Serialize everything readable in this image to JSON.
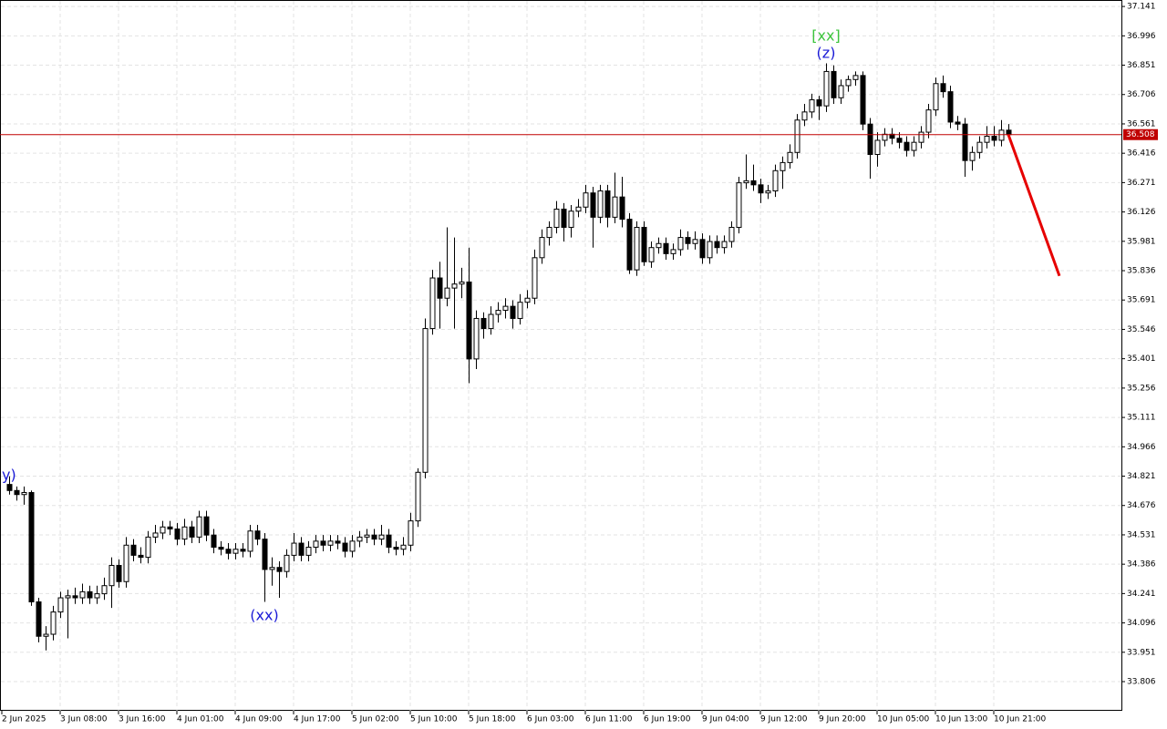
{
  "chart_data": {
    "type": "candlestick",
    "ohlc": [
      [
        34.78,
        34.82,
        34.73,
        34.75
      ],
      [
        34.75,
        34.77,
        34.7,
        34.73
      ],
      [
        34.73,
        34.77,
        34.68,
        34.74
      ],
      [
        34.74,
        34.75,
        34.18,
        34.2
      ],
      [
        34.2,
        34.22,
        34.0,
        34.03
      ],
      [
        34.03,
        34.08,
        33.96,
        34.04
      ],
      [
        34.04,
        34.18,
        34.01,
        34.15
      ],
      [
        34.15,
        34.25,
        34.12,
        34.22
      ],
      [
        34.22,
        34.26,
        34.02,
        34.23
      ],
      [
        34.23,
        34.27,
        34.19,
        34.22
      ],
      [
        34.22,
        34.29,
        34.19,
        34.25
      ],
      [
        34.25,
        34.28,
        34.19,
        34.22
      ],
      [
        34.22,
        34.28,
        34.19,
        34.24
      ],
      [
        34.24,
        34.32,
        34.21,
        34.28
      ],
      [
        34.28,
        34.42,
        34.17,
        34.38
      ],
      [
        34.38,
        34.41,
        34.27,
        34.3
      ],
      [
        34.3,
        34.52,
        34.27,
        34.48
      ],
      [
        34.48,
        34.51,
        34.4,
        34.43
      ],
      [
        34.43,
        34.47,
        34.39,
        34.42
      ],
      [
        34.42,
        34.55,
        34.39,
        34.52
      ],
      [
        34.52,
        34.58,
        34.49,
        34.54
      ],
      [
        34.54,
        34.6,
        34.51,
        34.57
      ],
      [
        34.57,
        34.6,
        34.53,
        34.56
      ],
      [
        34.56,
        34.59,
        34.48,
        34.51
      ],
      [
        34.51,
        34.61,
        34.48,
        34.57
      ],
      [
        34.57,
        34.6,
        34.49,
        34.52
      ],
      [
        34.52,
        34.65,
        34.49,
        34.62
      ],
      [
        34.62,
        34.65,
        34.5,
        34.53
      ],
      [
        34.53,
        34.56,
        34.44,
        34.47
      ],
      [
        34.47,
        34.5,
        34.43,
        34.46
      ],
      [
        34.46,
        34.49,
        34.41,
        34.44
      ],
      [
        34.44,
        34.49,
        34.41,
        34.46
      ],
      [
        34.46,
        34.49,
        34.42,
        34.45
      ],
      [
        34.45,
        34.58,
        34.42,
        34.55
      ],
      [
        34.55,
        34.58,
        34.48,
        34.51
      ],
      [
        34.51,
        34.54,
        34.2,
        34.36
      ],
      [
        34.36,
        34.42,
        34.28,
        34.37
      ],
      [
        34.37,
        34.4,
        34.22,
        34.35
      ],
      [
        34.35,
        34.46,
        34.32,
        34.43
      ],
      [
        34.43,
        34.54,
        34.4,
        34.49
      ],
      [
        34.49,
        34.52,
        34.4,
        34.43
      ],
      [
        34.43,
        34.5,
        34.4,
        34.47
      ],
      [
        34.47,
        34.53,
        34.44,
        34.5
      ],
      [
        34.5,
        34.53,
        34.45,
        34.48
      ],
      [
        34.48,
        34.53,
        34.45,
        34.5
      ],
      [
        34.5,
        34.53,
        34.46,
        34.49
      ],
      [
        34.49,
        34.52,
        34.42,
        34.45
      ],
      [
        34.45,
        34.53,
        34.42,
        34.5
      ],
      [
        34.5,
        34.55,
        34.47,
        34.52
      ],
      [
        34.52,
        34.56,
        34.49,
        34.53
      ],
      [
        34.53,
        34.56,
        34.48,
        34.51
      ],
      [
        34.51,
        34.58,
        34.48,
        34.53
      ],
      [
        34.53,
        34.56,
        34.44,
        34.47
      ],
      [
        34.47,
        34.5,
        34.43,
        34.46
      ],
      [
        34.46,
        34.52,
        34.43,
        34.48
      ],
      [
        34.48,
        34.64,
        34.45,
        34.6
      ],
      [
        34.6,
        34.86,
        34.57,
        34.84
      ],
      [
        34.84,
        35.6,
        34.81,
        35.55
      ],
      [
        35.55,
        35.84,
        35.52,
        35.8
      ],
      [
        35.8,
        35.88,
        35.55,
        35.7
      ],
      [
        35.7,
        36.05,
        35.66,
        35.75
      ],
      [
        35.75,
        36.0,
        35.55,
        35.77
      ],
      [
        35.77,
        35.85,
        35.7,
        35.78
      ],
      [
        35.78,
        35.95,
        35.28,
        35.4
      ],
      [
        35.4,
        35.64,
        35.35,
        35.6
      ],
      [
        35.6,
        35.63,
        35.5,
        35.55
      ],
      [
        35.55,
        35.66,
        35.52,
        35.62
      ],
      [
        35.62,
        35.68,
        35.58,
        35.64
      ],
      [
        35.64,
        35.7,
        35.6,
        35.66
      ],
      [
        35.66,
        35.69,
        35.55,
        35.6
      ],
      [
        35.6,
        35.72,
        35.57,
        35.68
      ],
      [
        35.68,
        35.74,
        35.65,
        35.7
      ],
      [
        35.7,
        35.94,
        35.67,
        35.9
      ],
      [
        35.9,
        36.04,
        35.87,
        36.0
      ],
      [
        36.0,
        36.08,
        35.96,
        36.05
      ],
      [
        36.05,
        36.18,
        36.02,
        36.14
      ],
      [
        36.14,
        36.17,
        35.98,
        36.05
      ],
      [
        36.05,
        36.16,
        36.0,
        36.13
      ],
      [
        36.13,
        36.19,
        36.1,
        36.15
      ],
      [
        36.15,
        36.26,
        36.12,
        36.22
      ],
      [
        36.22,
        36.25,
        35.95,
        36.1
      ],
      [
        36.1,
        36.26,
        36.07,
        36.23
      ],
      [
        36.23,
        36.26,
        36.05,
        36.1
      ],
      [
        36.1,
        36.32,
        36.07,
        36.2
      ],
      [
        36.2,
        36.3,
        36.05,
        36.09
      ],
      [
        36.09,
        36.12,
        35.82,
        35.84
      ],
      [
        35.84,
        36.08,
        35.81,
        36.05
      ],
      [
        36.05,
        36.08,
        35.86,
        35.88
      ],
      [
        35.88,
        35.98,
        35.85,
        35.95
      ],
      [
        35.95,
        36.0,
        35.92,
        35.97
      ],
      [
        35.97,
        36.0,
        35.89,
        35.92
      ],
      [
        35.92,
        35.97,
        35.89,
        35.94
      ],
      [
        35.94,
        36.04,
        35.91,
        36.0
      ],
      [
        36.0,
        36.03,
        35.94,
        35.97
      ],
      [
        35.97,
        36.03,
        35.94,
        35.99
      ],
      [
        35.99,
        36.02,
        35.87,
        35.9
      ],
      [
        35.9,
        36.01,
        35.87,
        35.98
      ],
      [
        35.98,
        36.01,
        35.92,
        35.95
      ],
      [
        35.95,
        36.01,
        35.92,
        35.98
      ],
      [
        35.98,
        36.08,
        35.95,
        36.05
      ],
      [
        36.05,
        36.3,
        36.02,
        36.27
      ],
      [
        36.27,
        36.41,
        36.24,
        36.28
      ],
      [
        36.28,
        36.36,
        36.23,
        36.26
      ],
      [
        36.26,
        36.29,
        36.17,
        36.22
      ],
      [
        36.22,
        36.26,
        36.19,
        36.23
      ],
      [
        36.23,
        36.36,
        36.2,
        36.33
      ],
      [
        36.33,
        36.4,
        36.24,
        36.37
      ],
      [
        36.37,
        36.46,
        36.34,
        36.42
      ],
      [
        36.42,
        36.61,
        36.39,
        36.58
      ],
      [
        36.58,
        36.66,
        36.55,
        36.62
      ],
      [
        36.62,
        36.71,
        36.59,
        36.68
      ],
      [
        36.68,
        36.7,
        36.58,
        36.65
      ],
      [
        36.65,
        36.86,
        36.62,
        36.82
      ],
      [
        36.82,
        36.85,
        36.66,
        36.69
      ],
      [
        36.69,
        36.78,
        36.66,
        36.75
      ],
      [
        36.75,
        36.8,
        36.72,
        36.78
      ],
      [
        36.78,
        36.82,
        36.75,
        36.8
      ],
      [
        36.8,
        36.82,
        36.53,
        36.56
      ],
      [
        36.56,
        36.59,
        36.29,
        36.41
      ],
      [
        36.41,
        36.52,
        36.35,
        36.48
      ],
      [
        36.48,
        36.54,
        36.45,
        36.51
      ],
      [
        36.51,
        36.54,
        36.46,
        36.49
      ],
      [
        36.49,
        36.52,
        36.44,
        36.47
      ],
      [
        36.47,
        36.5,
        36.4,
        36.43
      ],
      [
        36.43,
        36.5,
        36.4,
        36.47
      ],
      [
        36.47,
        36.55,
        36.44,
        36.52
      ],
      [
        36.52,
        36.66,
        36.49,
        36.63
      ],
      [
        36.63,
        36.79,
        36.6,
        36.76
      ],
      [
        36.76,
        36.8,
        36.69,
        36.72
      ],
      [
        36.72,
        36.75,
        36.54,
        36.57
      ],
      [
        36.57,
        36.6,
        36.53,
        36.56
      ],
      [
        36.56,
        36.59,
        36.3,
        36.38
      ],
      [
        36.38,
        36.45,
        36.33,
        36.42
      ],
      [
        36.42,
        36.5,
        36.39,
        36.47
      ],
      [
        36.47,
        36.55,
        36.44,
        36.5
      ],
      [
        36.5,
        36.55,
        36.45,
        36.48
      ],
      [
        36.48,
        36.58,
        36.45,
        36.53
      ],
      [
        36.53,
        36.56,
        36.49,
        36.508
      ]
    ],
    "xlim": [
      -1.25,
      152.5
    ],
    "xticks": [
      {
        "value": -1,
        "label": "2 Jun 2025"
      },
      {
        "value": 7,
        "label": "3 Jun 08:00"
      },
      {
        "value": 15,
        "label": "3 Jun 16:00"
      },
      {
        "value": 23,
        "label": "4 Jun 01:00"
      },
      {
        "value": 31,
        "label": "4 Jun 09:00"
      },
      {
        "value": 39,
        "label": "4 Jun 17:00"
      },
      {
        "value": 47,
        "label": "5 Jun 02:00"
      },
      {
        "value": 55,
        "label": "5 Jun 10:00"
      },
      {
        "value": 63,
        "label": "5 Jun 18:00"
      },
      {
        "value": 71,
        "label": "6 Jun 03:00"
      },
      {
        "value": 79,
        "label": "6 Jun 11:00"
      },
      {
        "value": 87,
        "label": "6 Jun 19:00"
      },
      {
        "value": 95,
        "label": "9 Jun 04:00"
      },
      {
        "value": 103,
        "label": "9 Jun 12:00"
      },
      {
        "value": 111,
        "label": "9 Jun 20:00"
      },
      {
        "value": 119,
        "label": "10 Jun 05:00"
      },
      {
        "value": 127,
        "label": "10 Jun 13:00"
      },
      {
        "value": 135,
        "label": "10 Jun 21:00"
      }
    ],
    "ylim": [
      33.662,
      37.173
    ],
    "yticks": [
      37.141,
      36.996,
      36.851,
      36.706,
      36.561,
      36.416,
      36.271,
      36.126,
      35.981,
      35.836,
      35.691,
      35.546,
      35.401,
      35.256,
      35.111,
      34.966,
      34.821,
      34.676,
      34.531,
      34.386,
      34.241,
      34.096,
      33.951,
      33.806
    ],
    "grid": true,
    "price_line": 36.508,
    "price_line_color": "#c00000",
    "forecast": {
      "x": [
        137,
        144
      ],
      "values": [
        36.508,
        35.81
      ],
      "color": "#e60000"
    },
    "annotations": [
      {
        "text": "y)",
        "color": "#1a1ad6"
      },
      {
        "text": "(xx)",
        "color": "#1a1ad6"
      },
      {
        "text": "[xx]",
        "color": "#3cc43c"
      },
      {
        "text": "(z)",
        "color": "#1a1ad6"
      }
    ]
  }
}
